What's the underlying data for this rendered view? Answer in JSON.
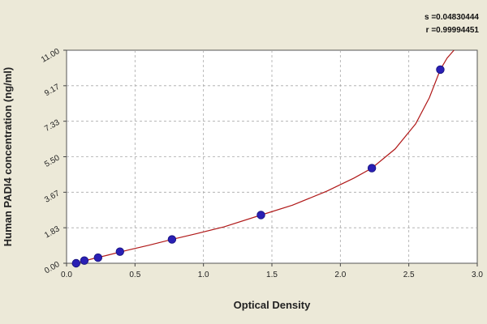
{
  "chart_data": {
    "type": "scatter",
    "title": "",
    "xlabel": "Optical Density",
    "ylabel": "Human PADI4 concentration (ng/ml)",
    "xlim": [
      0.0,
      3.0
    ],
    "ylim": [
      0.0,
      11.0
    ],
    "x_ticks": [
      "0.0",
      "0.5",
      "1.0",
      "1.5",
      "2.0",
      "2.5",
      "3.0"
    ],
    "y_ticks": [
      "0.00",
      "1.83",
      "3.67",
      "5.50",
      "7.33",
      "9.17",
      "11.00"
    ],
    "grid": true,
    "points": {
      "x": [
        0.07,
        0.13,
        0.23,
        0.39,
        0.77,
        1.42,
        2.23,
        2.73
      ],
      "y": [
        0.0,
        0.14,
        0.29,
        0.6,
        1.23,
        2.49,
        4.91,
        10.0
      ]
    },
    "fit": {
      "x": [
        0.04,
        0.1,
        0.2,
        0.3,
        0.45,
        0.6,
        0.77,
        0.95,
        1.15,
        1.42,
        1.65,
        1.9,
        2.1,
        2.23,
        2.4,
        2.55,
        2.65,
        2.73,
        2.78,
        2.83
      ],
      "y": [
        -0.05,
        0.06,
        0.25,
        0.42,
        0.68,
        0.93,
        1.23,
        1.53,
        1.88,
        2.49,
        3.0,
        3.72,
        4.4,
        4.91,
        5.9,
        7.2,
        8.55,
        10.0,
        10.6,
        11.0
      ]
    },
    "stats": [
      "s =0.04830444",
      "r =0.99994451"
    ],
    "colors": {
      "background": "#ece9d8",
      "plot": "#ffffff",
      "point": "#2a1fb4",
      "curve": "#b01818",
      "grid": "#a8a8a8"
    }
  }
}
